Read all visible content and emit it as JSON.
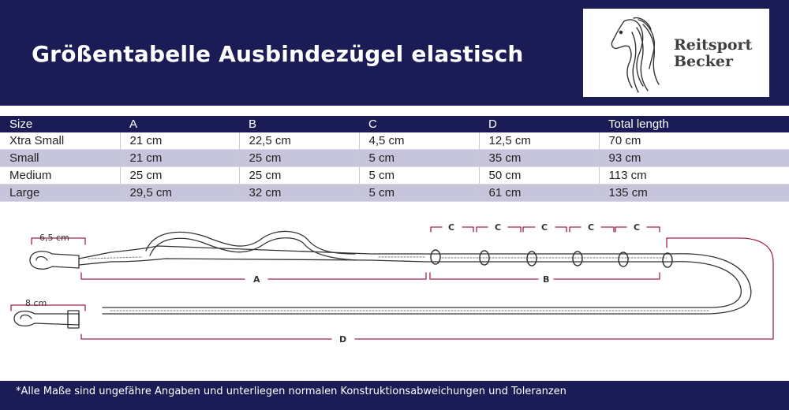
{
  "header": {
    "title": "Größentabelle Ausbindezügel elastisch",
    "logo_line1": "Reitsport",
    "logo_line2": "Becker"
  },
  "table": {
    "columns": [
      "Size",
      "A",
      "B",
      "C",
      "D",
      "Total length"
    ],
    "rows": [
      [
        "Xtra Small",
        "21  cm",
        "22,5 cm",
        "4,5 cm",
        "12,5 cm",
        "70 cm"
      ],
      [
        "Small",
        "21 cm",
        "25 cm",
        "5 cm",
        "35 cm",
        "93 cm"
      ],
      [
        "Medium",
        "25 cm",
        "25 cm",
        "5 cm",
        "50 cm",
        "113 cm"
      ],
      [
        "Large",
        "29,5 cm",
        "32 cm",
        "5 cm",
        "61 cm",
        "135 cm"
      ]
    ]
  },
  "diagram": {
    "label_top_hook": "6,5 cm",
    "label_bottom_hook": "8 cm",
    "label_a": "A",
    "label_b": "B",
    "label_c": "C",
    "label_d": "D"
  },
  "footer": {
    "note": "*Alle Maße sind ungefähre Angaben und unterliegen normalen Konstruktionsabweichungen und Toleranzen"
  },
  "colors": {
    "navy": "#1b1c55",
    "stripe": "#c6c5dc",
    "dimension_line": "#a0224a"
  }
}
